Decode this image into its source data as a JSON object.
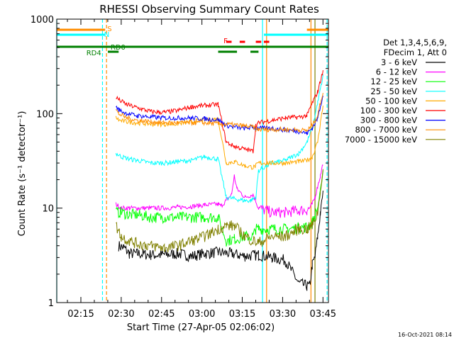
{
  "chart_data": {
    "type": "line",
    "title": "RHESSI Observing Summary Count Rates",
    "xlabel": "Start Time (27-Apr-05 02:06:02)",
    "ylabel": "Count Rate (s⁻¹ detector⁻¹)",
    "yscale": "log",
    "ylim": [
      1,
      1000
    ],
    "xlim_minutes_from_0206": [
      0,
      101
    ],
    "x_ticks": [
      "02:15",
      "02:30",
      "02:45",
      "03:00",
      "03:15",
      "03:30",
      "03:45"
    ],
    "y_ticks": [
      "1",
      "10",
      "100",
      "1000"
    ],
    "legend_header": [
      "Det 1,3,4,5,6,9,",
      "FDecim 1, Att 0"
    ],
    "legend_position": "right",
    "timestamp": "16-Oct-2021 08:14",
    "flag_labels": {
      "saa": "S",
      "night": "N",
      "rd0": "RD0",
      "rd4": "RD4",
      "flare": "F"
    },
    "series": [
      {
        "name": "3 - 6 keV",
        "color": "#000000",
        "x": [
          0,
          19,
          21,
          23,
          25,
          27,
          30,
          35,
          40,
          45,
          50,
          55,
          60,
          65,
          70,
          75,
          80,
          85,
          90,
          93,
          94,
          95,
          96,
          97,
          98,
          99,
          100
        ],
        "y": [
          null,
          null,
          null,
          4,
          3.8,
          3.3,
          3.3,
          3.2,
          3.2,
          3.3,
          3.1,
          3.3,
          3.4,
          3.3,
          3.1,
          3.2,
          3.0,
          2.8,
          1.6,
          1.5,
          1.5,
          2.5,
          3,
          5,
          9,
          15,
          null
        ]
      },
      {
        "name": "6 - 12 keV",
        "color": "#ff00ff",
        "x": [
          0,
          19,
          21,
          22,
          24,
          27,
          30,
          35,
          40,
          45,
          50,
          55,
          60,
          61,
          63,
          65,
          66,
          67,
          70,
          73,
          75,
          80,
          85,
          90,
          93,
          94,
          95,
          96,
          97,
          98,
          99,
          100
        ],
        "y": [
          null,
          null,
          null,
          11,
          10,
          10,
          10,
          10,
          10,
          10.2,
          10.4,
          10.8,
          11,
          10.5,
          12,
          14,
          22,
          16,
          13,
          14,
          10,
          9,
          9,
          9.5,
          9.5,
          10,
          11,
          13,
          17,
          22,
          30,
          null
        ]
      },
      {
        "name": "12 - 25 keV",
        "color": "#00ff00",
        "x": [
          0,
          19,
          21,
          22,
          24,
          27,
          30,
          35,
          40,
          45,
          50,
          55,
          60,
          63,
          66,
          70,
          73,
          74,
          75,
          80,
          85,
          90,
          93,
          95,
          97,
          98,
          99,
          100
        ],
        "y": [
          null,
          null,
          null,
          9,
          9,
          8.5,
          8.5,
          8,
          8,
          8,
          8,
          8,
          8,
          4.5,
          4.7,
          5,
          5,
          6,
          6,
          6,
          6,
          6.2,
          6.3,
          7,
          10,
          15,
          25,
          null
        ]
      },
      {
        "name": "25 - 50 keV",
        "color": "#00ffff",
        "x": [
          0,
          19,
          21,
          22,
          24,
          27,
          30,
          35,
          40,
          45,
          50,
          55,
          60,
          63,
          70,
          72,
          74,
          75,
          80,
          85,
          90,
          93,
          95,
          97,
          98,
          99,
          100
        ],
        "y": [
          null,
          null,
          null,
          38,
          35,
          33,
          32,
          30,
          30,
          31,
          32,
          35,
          33,
          13,
          12,
          12,
          13,
          25,
          30,
          32,
          38,
          50,
          70,
          130,
          180,
          250,
          null
        ]
      },
      {
        "name": "50 - 100 keV",
        "color": "#ffaa00",
        "x": [
          0,
          19,
          21,
          22,
          23,
          26,
          30,
          35,
          40,
          45,
          50,
          55,
          60,
          63,
          66,
          70,
          73,
          74,
          75,
          80,
          85,
          90,
          93,
          95,
          97,
          98,
          99,
          100
        ],
        "y": [
          null,
          null,
          null,
          92,
          85,
          82,
          80,
          78,
          77,
          78,
          82,
          86,
          88,
          30,
          31,
          28,
          27,
          28,
          30,
          30,
          30,
          31,
          32,
          35,
          50,
          80,
          120,
          null
        ]
      },
      {
        "name": "100 - 300 keV",
        "color": "#ff0000",
        "x": [
          0,
          19,
          21,
          22,
          23,
          26,
          30,
          35,
          40,
          45,
          50,
          55,
          60,
          63,
          66,
          70,
          73,
          74,
          75,
          80,
          85,
          90,
          93,
          95,
          97,
          98,
          99,
          100
        ],
        "y": [
          null,
          null,
          null,
          150,
          140,
          125,
          115,
          105,
          103,
          108,
          118,
          122,
          125,
          50,
          45,
          42,
          40,
          75,
          80,
          85,
          90,
          92,
          95,
          130,
          170,
          220,
          280,
          null
        ]
      },
      {
        "name": "300 - 800 keV",
        "color": "#0000ff",
        "x": [
          0,
          19,
          21,
          22,
          23,
          26,
          30,
          35,
          40,
          45,
          50,
          55,
          60,
          63,
          66,
          70,
          73,
          74,
          75,
          80,
          85,
          90,
          93,
          95,
          97,
          98,
          99,
          100
        ],
        "y": [
          null,
          null,
          null,
          120,
          110,
          100,
          95,
          92,
          90,
          90,
          90,
          88,
          86,
          75,
          72,
          70,
          72,
          70,
          70,
          70,
          67,
          65,
          62,
          70,
          90,
          120,
          160,
          null
        ]
      },
      {
        "name": "800 - 7000 keV",
        "color": "#ff8c00",
        "x": [
          0,
          19,
          21,
          22,
          23,
          26,
          30,
          35,
          40,
          45,
          50,
          55,
          60,
          63,
          66,
          70,
          73,
          74,
          75,
          80,
          85,
          90,
          93,
          95,
          97,
          98,
          99,
          100
        ],
        "y": [
          null,
          null,
          null,
          110,
          100,
          90,
          85,
          82,
          80,
          80,
          80,
          80,
          78,
          77,
          76,
          74,
          72,
          68,
          68,
          68,
          68,
          67,
          66,
          75,
          95,
          130,
          170,
          null
        ]
      },
      {
        "name": "7000 - 15000 keV",
        "color": "#808000",
        "x": [
          0,
          19,
          21,
          22,
          24,
          27,
          30,
          35,
          40,
          45,
          50,
          55,
          60,
          63,
          66,
          70,
          73,
          75,
          80,
          85,
          90,
          93,
          95,
          97,
          98,
          99,
          100
        ],
        "y": [
          null,
          null,
          null,
          6.5,
          5,
          4.5,
          4.2,
          4,
          3.8,
          4,
          4.5,
          5,
          6,
          6.5,
          6.5,
          5,
          4.5,
          4.3,
          5,
          5,
          6,
          6,
          6.5,
          9,
          15,
          25,
          null
        ]
      }
    ],
    "flags": [
      {
        "name": "saa",
        "color": "#ff8c00",
        "value": "S",
        "intervals": [
          [
            0,
            18
          ],
          [
            93,
            101
          ]
        ]
      },
      {
        "name": "night",
        "color": "#00ffff",
        "value": "N",
        "intervals": [
          [
            0,
            18
          ],
          [
            77,
            101
          ]
        ]
      },
      {
        "name": "rd0",
        "color": "#008000",
        "value": "RD0",
        "intervals": [
          [
            0,
            101
          ]
        ]
      },
      {
        "name": "rd4",
        "color": "#008000",
        "value": "RD4",
        "intervals": [
          [
            19,
            23
          ],
          [
            60,
            67
          ],
          [
            72,
            75
          ]
        ]
      },
      {
        "name": "flare",
        "color": "#ff0000",
        "value": "F",
        "intervals": [
          [
            63,
            65
          ],
          [
            68,
            70
          ],
          [
            74,
            76
          ],
          [
            77,
            79
          ]
        ]
      }
    ],
    "vlines": [
      {
        "x": 0,
        "color": "#00ffff",
        "style": "solid"
      },
      {
        "x": 17,
        "color": "#00ffff",
        "style": "dashed"
      },
      {
        "x": 18.5,
        "color": "#ff8c00",
        "style": "dashed"
      },
      {
        "x": 76.5,
        "color": "#00ffff",
        "style": "solid"
      },
      {
        "x": 78,
        "color": "#ff8c00",
        "style": "solid"
      },
      {
        "x": 94.5,
        "color": "#ff8c00",
        "style": "solid"
      },
      {
        "x": 96,
        "color": "#808000",
        "style": "solid"
      },
      {
        "x": 100.5,
        "color": "#00ffff",
        "style": "dashed"
      }
    ]
  }
}
